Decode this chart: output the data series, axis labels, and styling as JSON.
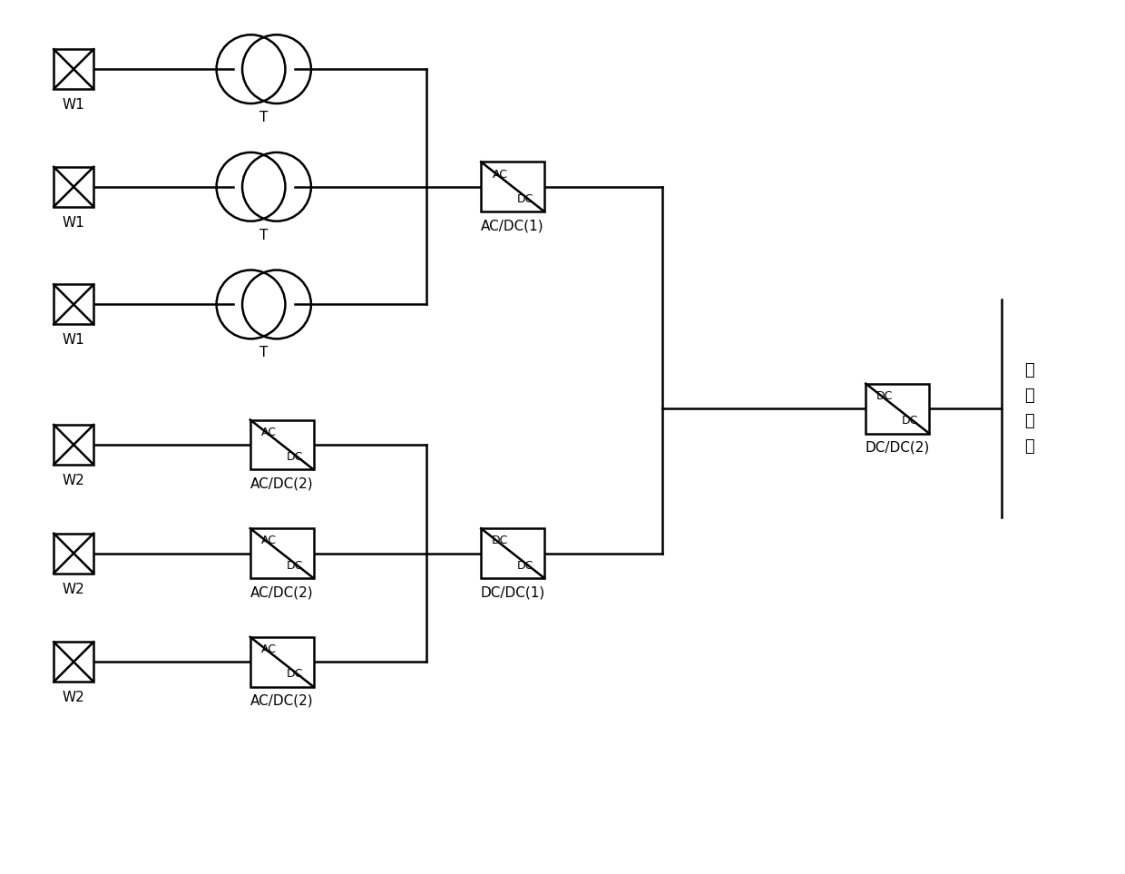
{
  "bg_color": "#ffffff",
  "line_color": "#000000",
  "line_width": 1.8,
  "fig_width": 12.4,
  "fig_height": 9.63,
  "w1_labels": [
    "W1",
    "W1",
    "W1"
  ],
  "w2_labels": [
    "W2",
    "W2",
    "W2"
  ],
  "transformer_label": "T",
  "acdc1_label": "AC/DC(1)",
  "acdc2_label": "AC/DC(2)",
  "dcdc1_label": "DC/DC(1)",
  "dcdc2_label": "DC/DC(2)",
  "grid_label": "直流电网"
}
